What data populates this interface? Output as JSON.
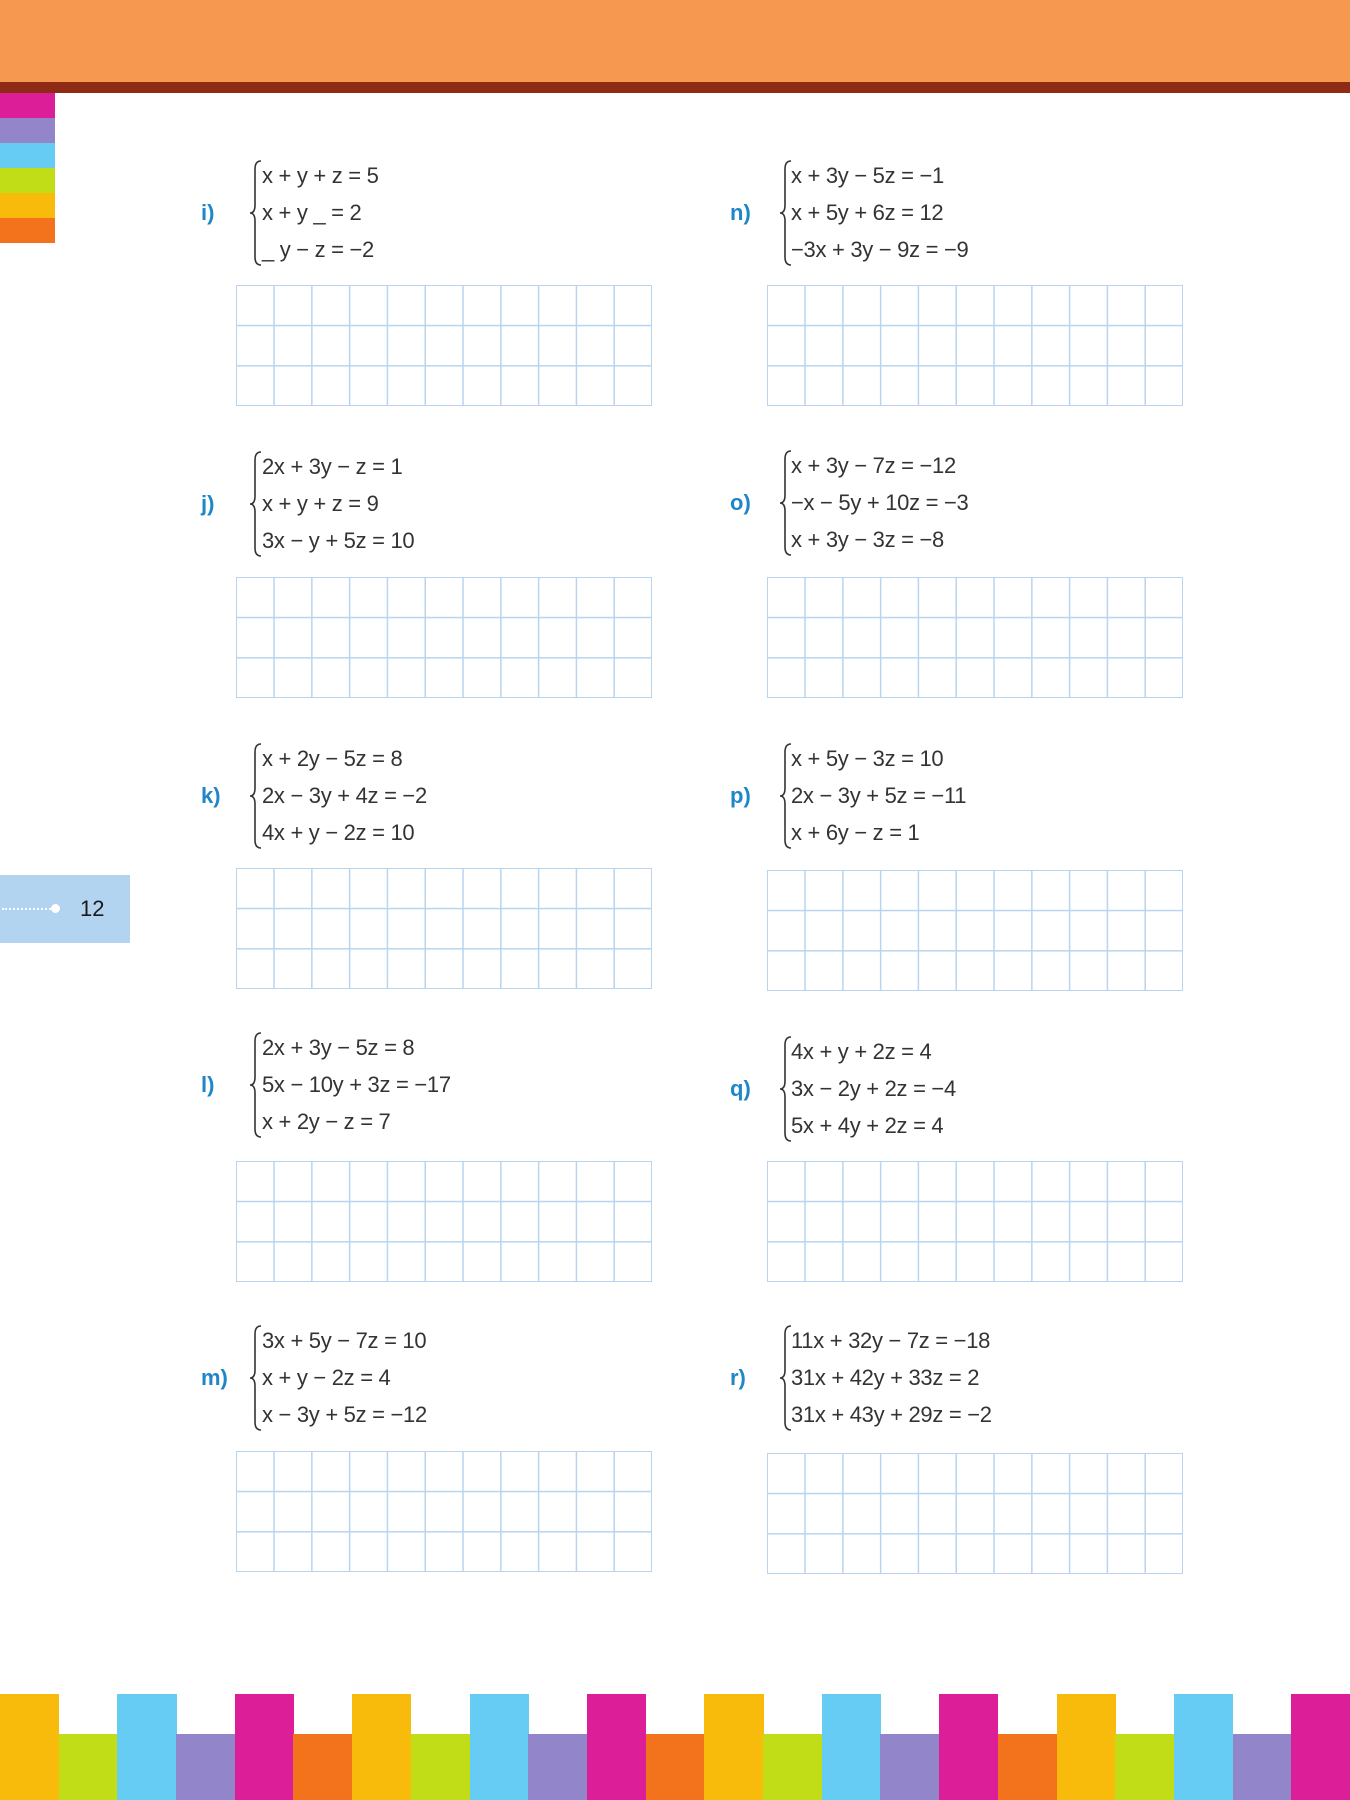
{
  "colors": {
    "header": "#f79851",
    "header_band": "#8f2a14",
    "label": "#1f86c8",
    "grid": "#b8d4ee",
    "side_tabs": [
      "#dc1f98",
      "#9385c9",
      "#66ccf3",
      "#c0dd18",
      "#f9bb0b",
      "#f2731c"
    ],
    "footer_pattern": [
      "#f9bb0b",
      "#c0dd18",
      "#66ccf3",
      "#9385c9",
      "#dc1f98",
      "#f2731c"
    ]
  },
  "page_number": "12",
  "problems": [
    {
      "label": "i)",
      "equations": [
        "x + y + z = 5",
        "x + y _ = 2",
        "_ y − z = −2"
      ]
    },
    {
      "label": "j)",
      "equations": [
        "2x + 3y − z = 1",
        "x + y + z = 9",
        "3x − y + 5z = 10"
      ]
    },
    {
      "label": "k)",
      "equations": [
        "x + 2y − 5z = 8",
        "2x − 3y + 4z = −2",
        "4x + y − 2z = 10"
      ]
    },
    {
      "label": "l)",
      "equations": [
        "2x + 3y − 5z = 8",
        "5x − 10y + 3z = −17",
        "x + 2y − z = 7"
      ]
    },
    {
      "label": "m)",
      "equations": [
        "3x + 5y − 7z = 10",
        "x + y − 2z = 4",
        "x − 3y + 5z = −12"
      ]
    },
    {
      "label": "n)",
      "equations": [
        "x + 3y − 5z = −1",
        "x + 5y + 6z = 12",
        "−3x + 3y − 9z = −9"
      ]
    },
    {
      "label": "o)",
      "equations": [
        "x + 3y − 7z = −12",
        "−x − 5y + 10z = −3",
        "x + 3y − 3z = −8"
      ]
    },
    {
      "label": "p)",
      "equations": [
        "x + 5y − 3z = 10",
        "2x − 3y + 5z = −11",
        "x + 6y − z = 1"
      ]
    },
    {
      "label": "q)",
      "equations": [
        "4x + y + 2z = 4",
        "3x − 2y + 2z = −4",
        "5x + 4y + 2z = 4"
      ]
    },
    {
      "label": "r)",
      "equations": [
        "11x + 32y − 7z = −18",
        "31x + 42y + 33z = 2",
        "31x + 43y + 29z = −2"
      ]
    }
  ]
}
